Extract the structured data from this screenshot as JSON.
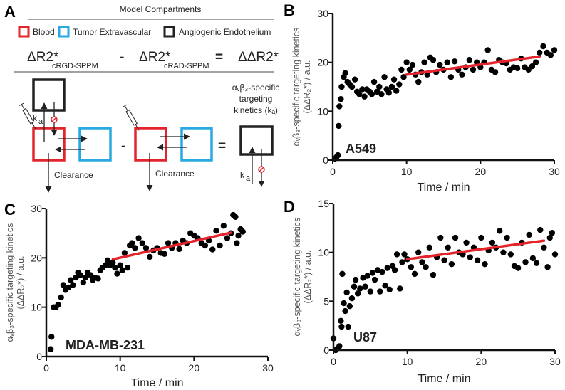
{
  "panel_a": {
    "label": "A",
    "title": "Model Compartments",
    "legend": [
      {
        "label": "Blood",
        "color": "#e3242b"
      },
      {
        "label": "Tumor Extravascular",
        "color": "#29a9e1"
      },
      {
        "label": "Angiogenic Endothelium",
        "color": "#222222"
      }
    ],
    "equation": {
      "term1": "ΔR2*",
      "term1_sub": "cRGD-SPPM",
      "minus": "-",
      "term2": "ΔR2*",
      "term2_sub": "cRAD-SPPM",
      "equals": "=",
      "result": "ΔΔR2*"
    },
    "diagram": {
      "ka": "k",
      "ka_sub": "a",
      "clearance": "Clearance",
      "minus": "-",
      "equals": "=",
      "result_line1": "αᵥβ₃-specific",
      "result_line2": "targeting",
      "result_line3": "kinetics (kₐ)",
      "blocked_icon_color": "#e3242b"
    }
  },
  "chart_data": [
    {
      "panel": "B",
      "type": "scatter",
      "annotation": "A549",
      "xlabel": "Time / min",
      "ylabel_line1": "αᵥβ₃-specific targeting kinetics",
      "ylabel_line2": "(ΔΔR₂*) / a.u.",
      "xlim": [
        0,
        30
      ],
      "ylim": [
        0,
        30
      ],
      "xticks": [
        0,
        10,
        20,
        30
      ],
      "yticks": [
        0,
        10,
        20,
        30
      ],
      "point_color": "#000000",
      "fit_color": "#e3242b",
      "fit_line": {
        "x": [
          10,
          28
        ],
        "y": [
          17.5,
          21.2
        ]
      },
      "points": [
        [
          0.3,
          0.3
        ],
        [
          0.5,
          0.6
        ],
        [
          0.7,
          1
        ],
        [
          0.8,
          7
        ],
        [
          0.9,
          11
        ],
        [
          1.1,
          12.5
        ],
        [
          1.2,
          15
        ],
        [
          1.5,
          17
        ],
        [
          1.7,
          17.8
        ],
        [
          2,
          16
        ],
        [
          2.3,
          15.5
        ],
        [
          2.6,
          15
        ],
        [
          3,
          16.5
        ],
        [
          3.3,
          14
        ],
        [
          3.6,
          13.5
        ],
        [
          4,
          14.5
        ],
        [
          4.3,
          13
        ],
        [
          4.6,
          14.5
        ],
        [
          5,
          14
        ],
        [
          5.3,
          13.5
        ],
        [
          5.6,
          16
        ],
        [
          6,
          14
        ],
        [
          6.3,
          15
        ],
        [
          6.6,
          13.5
        ],
        [
          7,
          17
        ],
        [
          7.3,
          14.5
        ],
        [
          7.6,
          13.8
        ],
        [
          8,
          15
        ],
        [
          8.3,
          16.5
        ],
        [
          8.6,
          14.2
        ],
        [
          9,
          15.5
        ],
        [
          9.3,
          18.5
        ],
        [
          9.6,
          17
        ],
        [
          10,
          20
        ],
        [
          10.4,
          18.5
        ],
        [
          10.8,
          19.5
        ],
        [
          11.2,
          17.5
        ],
        [
          11.6,
          16
        ],
        [
          12,
          18
        ],
        [
          12.4,
          20
        ],
        [
          12.8,
          17.5
        ],
        [
          13.2,
          21
        ],
        [
          13.6,
          20.5
        ],
        [
          14,
          18
        ],
        [
          14.5,
          19.5
        ],
        [
          15,
          18.5
        ],
        [
          15.5,
          20
        ],
        [
          16,
          17
        ],
        [
          16.5,
          20.2
        ],
        [
          17,
          18.5
        ],
        [
          17.5,
          17.5
        ],
        [
          18,
          19
        ],
        [
          18.5,
          20.5
        ],
        [
          19,
          18.5
        ],
        [
          19.5,
          20
        ],
        [
          20,
          19
        ],
        [
          20.5,
          20
        ],
        [
          21,
          22.5
        ],
        [
          21.5,
          18.5
        ],
        [
          22,
          18
        ],
        [
          22.5,
          20.5
        ],
        [
          23,
          20
        ],
        [
          23.5,
          19.8
        ],
        [
          24,
          18.5
        ],
        [
          24.5,
          19
        ],
        [
          25,
          18.8
        ],
        [
          25.5,
          20.8
        ],
        [
          26,
          19
        ],
        [
          26.5,
          18.5
        ],
        [
          27,
          19.2
        ],
        [
          27.5,
          20
        ],
        [
          28,
          22
        ],
        [
          28.5,
          23.3
        ],
        [
          29,
          22
        ],
        [
          29.5,
          21.5
        ],
        [
          30,
          22.5
        ]
      ]
    },
    {
      "panel": "C",
      "type": "scatter",
      "annotation": "MDA-MB-231",
      "xlabel": "Time / min",
      "ylabel_line1": "αᵥβ₃-specific targeting kinetics",
      "ylabel_line2": "(ΔΔR₂*) / a.u.",
      "xlim": [
        0,
        30
      ],
      "ylim": [
        0,
        30
      ],
      "xticks": [
        0,
        10,
        20,
        30
      ],
      "yticks": [
        0,
        10,
        20,
        30
      ],
      "point_color": "#000000",
      "fit_color": "#e3242b",
      "fit_line": {
        "x": [
          9,
          25
        ],
        "y": [
          19.7,
          25.1
        ]
      },
      "points": [
        [
          0.6,
          1.5
        ],
        [
          0.7,
          4
        ],
        [
          1,
          10
        ],
        [
          1.3,
          10
        ],
        [
          1.6,
          10.5
        ],
        [
          2,
          12
        ],
        [
          2.3,
          14.5
        ],
        [
          2.6,
          13.5
        ],
        [
          3,
          14
        ],
        [
          3.3,
          15.5
        ],
        [
          3.6,
          14.5
        ],
        [
          4,
          16
        ],
        [
          4.3,
          17
        ],
        [
          4.6,
          16.5
        ],
        [
          5,
          15
        ],
        [
          5.3,
          16
        ],
        [
          5.6,
          17
        ],
        [
          6,
          16.5
        ],
        [
          6.3,
          15.5
        ],
        [
          6.6,
          16
        ],
        [
          7,
          15.8
        ],
        [
          7.3,
          17.5
        ],
        [
          7.6,
          18
        ],
        [
          8,
          18.5
        ],
        [
          8.3,
          19.5
        ],
        [
          8.6,
          18.5
        ],
        [
          9,
          19
        ],
        [
          9.3,
          18
        ],
        [
          9.6,
          16.8
        ],
        [
          10,
          18.5
        ],
        [
          10.3,
          17.5
        ],
        [
          10.6,
          21
        ],
        [
          11,
          18
        ],
        [
          11.3,
          22.5
        ],
        [
          11.6,
          23
        ],
        [
          12,
          22
        ],
        [
          12.5,
          24
        ],
        [
          13,
          23
        ],
        [
          13.5,
          22
        ],
        [
          14,
          20.2
        ],
        [
          14.5,
          21.5
        ],
        [
          15,
          22
        ],
        [
          15.5,
          21
        ],
        [
          16,
          20.8
        ],
        [
          16.5,
          23
        ],
        [
          17,
          22
        ],
        [
          17.5,
          23
        ],
        [
          18,
          21.8
        ],
        [
          18.5,
          23.5
        ],
        [
          19,
          23
        ],
        [
          19.5,
          25
        ],
        [
          20,
          24.5
        ],
        [
          20.5,
          24
        ],
        [
          21,
          23
        ],
        [
          21.5,
          22.5
        ],
        [
          22,
          23.5
        ],
        [
          22.5,
          21.7
        ],
        [
          23,
          25.5
        ],
        [
          23.5,
          22.5
        ],
        [
          24,
          26.5
        ],
        [
          24.5,
          24
        ],
        [
          25,
          25
        ],
        [
          25.3,
          28.7
        ],
        [
          25.6,
          28.3
        ],
        [
          25.8,
          23
        ],
        [
          26,
          24.5
        ],
        [
          26.3,
          25.8
        ],
        [
          26.6,
          25.3
        ]
      ]
    },
    {
      "panel": "D",
      "type": "scatter",
      "annotation": "U87",
      "xlabel": "Time / min",
      "ylabel_line1": "αᵥβ₃-specific targeting kinetics",
      "ylabel_line2": "(ΔΔR₂*) / a.u.",
      "xlim": [
        0,
        30
      ],
      "ylim": [
        0,
        15
      ],
      "xticks": [
        0,
        10,
        20,
        30
      ],
      "yticks": [
        0,
        5,
        10,
        15
      ],
      "point_color": "#000000",
      "fit_color": "#e3242b",
      "fit_line": {
        "x": [
          10,
          28.5
        ],
        "y": [
          9.3,
          11.2
        ]
      },
      "points": [
        [
          0,
          1.2
        ],
        [
          0.3,
          0
        ],
        [
          0.6,
          0.2
        ],
        [
          0.8,
          0.4
        ],
        [
          1,
          3
        ],
        [
          1.1,
          2.4
        ],
        [
          1.2,
          7.8
        ],
        [
          1.4,
          4.8
        ],
        [
          1.6,
          4
        ],
        [
          1.8,
          5.9
        ],
        [
          2,
          2.4
        ],
        [
          2.2,
          4.5
        ],
        [
          2.5,
          5.3
        ],
        [
          2.8,
          6.5
        ],
        [
          3,
          7.2
        ],
        [
          3.3,
          5.8
        ],
        [
          3.6,
          6.3
        ],
        [
          4,
          7.4
        ],
        [
          4.3,
          6.5
        ],
        [
          4.6,
          7.6
        ],
        [
          5,
          6
        ],
        [
          5.3,
          7.9
        ],
        [
          5.6,
          7.2
        ],
        [
          6,
          8.2
        ],
        [
          6.3,
          6
        ],
        [
          6.6,
          8
        ],
        [
          7,
          6.6
        ],
        [
          7.3,
          8.4
        ],
        [
          7.6,
          6.2
        ],
        [
          8,
          8.6
        ],
        [
          8.3,
          8.2
        ],
        [
          8.6,
          9.8
        ],
        [
          9,
          6.3
        ],
        [
          9.3,
          9
        ],
        [
          9.6,
          9.8
        ],
        [
          10,
          9.3
        ],
        [
          10.5,
          8.5
        ],
        [
          11,
          7.8
        ],
        [
          11.5,
          10
        ],
        [
          12,
          9
        ],
        [
          12.5,
          8.5
        ],
        [
          13,
          10.5
        ],
        [
          13.5,
          7.7
        ],
        [
          14,
          9.5
        ],
        [
          14.5,
          11.5
        ],
        [
          15,
          9.2
        ],
        [
          15.5,
          10.5
        ],
        [
          16,
          8.8
        ],
        [
          16.5,
          11.5
        ],
        [
          17,
          10
        ],
        [
          17.5,
          9.8
        ],
        [
          18,
          11
        ],
        [
          18.5,
          9.5
        ],
        [
          19,
          10.5
        ],
        [
          19.5,
          9.2
        ],
        [
          20,
          11.5
        ],
        [
          20.5,
          8.8
        ],
        [
          21,
          10.2
        ],
        [
          21.5,
          11
        ],
        [
          22,
          10.5
        ],
        [
          22.5,
          12.2
        ],
        [
          23,
          10
        ],
        [
          23.5,
          11.5
        ],
        [
          24,
          9.8
        ],
        [
          24.5,
          8.6
        ],
        [
          25,
          8.4
        ],
        [
          25.5,
          11
        ],
        [
          26,
          9
        ],
        [
          26.5,
          11.8
        ],
        [
          27,
          9.4
        ],
        [
          27.5,
          8.9
        ],
        [
          28,
          12.3
        ],
        [
          28.5,
          10.5
        ],
        [
          29,
          8.5
        ],
        [
          29.3,
          11.5
        ],
        [
          29.6,
          12
        ],
        [
          30,
          9.8
        ]
      ]
    }
  ]
}
